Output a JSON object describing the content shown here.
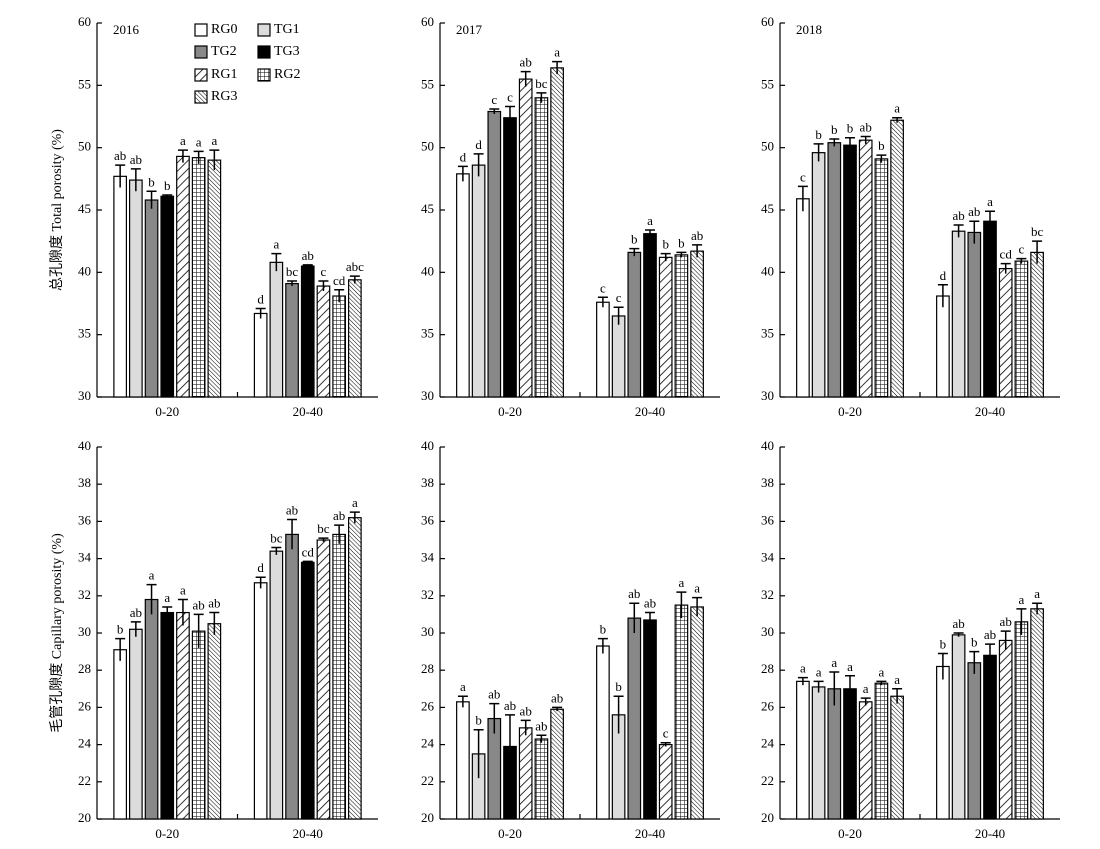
{
  "chart_data": [
    {
      "type": "bar",
      "title": "2016",
      "ylabel": "总孔隙度 Total porosity (%)",
      "categories": [
        "0-20",
        "20-40"
      ],
      "ylim": [
        30,
        60
      ],
      "yticks": [
        30,
        35,
        40,
        45,
        50,
        55,
        60
      ],
      "series": [
        {
          "name": "RG0",
          "pattern": "white",
          "values": [
            47.7,
            36.7
          ],
          "errors": [
            0.9,
            0.4
          ],
          "letters": [
            "ab",
            "d"
          ]
        },
        {
          "name": "TG1",
          "pattern": "lightgray",
          "values": [
            47.4,
            40.8
          ],
          "errors": [
            0.9,
            0.7
          ],
          "letters": [
            "ab",
            "a"
          ]
        },
        {
          "name": "TG2",
          "pattern": "gray",
          "values": [
            45.8,
            39.1
          ],
          "errors": [
            0.7,
            0.2
          ],
          "letters": [
            "b",
            "bc"
          ]
        },
        {
          "name": "TG3",
          "pattern": "black",
          "values": [
            46.1,
            40.5
          ],
          "errors": [
            0.1,
            0.1
          ],
          "letters": [
            "b",
            "ab"
          ]
        },
        {
          "name": "RG1",
          "pattern": "hatch",
          "values": [
            49.3,
            38.9
          ],
          "errors": [
            0.5,
            0.4
          ],
          "letters": [
            "a",
            "c"
          ]
        },
        {
          "name": "RG2",
          "pattern": "grid",
          "values": [
            49.2,
            38.1
          ],
          "errors": [
            0.5,
            0.5
          ],
          "letters": [
            "a",
            "cd"
          ]
        },
        {
          "name": "RG3",
          "pattern": "dense",
          "values": [
            49.0,
            39.4
          ],
          "errors": [
            0.8,
            0.3
          ],
          "letters": [
            "a",
            "abc"
          ]
        }
      ]
    },
    {
      "type": "bar",
      "title": "2017",
      "categories": [
        "0-20",
        "20-40"
      ],
      "ylim": [
        30,
        60
      ],
      "yticks": [
        30,
        35,
        40,
        45,
        50,
        55,
        60
      ],
      "series": [
        {
          "values": [
            47.9,
            37.6
          ],
          "errors": [
            0.6,
            0.4
          ],
          "letters": [
            "d",
            "c"
          ]
        },
        {
          "values": [
            48.6,
            36.5
          ],
          "errors": [
            0.9,
            0.7
          ],
          "letters": [
            "d",
            "c"
          ]
        },
        {
          "values": [
            52.9,
            41.6
          ],
          "errors": [
            0.2,
            0.3
          ],
          "letters": [
            "c",
            "b"
          ]
        },
        {
          "values": [
            52.4,
            43.1
          ],
          "errors": [
            0.9,
            0.3
          ],
          "letters": [
            "c",
            "a"
          ]
        },
        {
          "values": [
            55.5,
            41.2
          ],
          "errors": [
            0.6,
            0.3
          ],
          "letters": [
            "ab",
            "b"
          ]
        },
        {
          "values": [
            54.0,
            41.4
          ],
          "errors": [
            0.4,
            0.2
          ],
          "letters": [
            "bc",
            "b"
          ]
        },
        {
          "values": [
            56.4,
            41.7
          ],
          "errors": [
            0.5,
            0.5
          ],
          "letters": [
            "a",
            "ab"
          ]
        }
      ]
    },
    {
      "type": "bar",
      "title": "2018",
      "categories": [
        "0-20",
        "20-40"
      ],
      "ylim": [
        30,
        60
      ],
      "yticks": [
        30,
        35,
        40,
        45,
        50,
        55,
        60
      ],
      "series": [
        {
          "values": [
            45.9,
            38.1
          ],
          "errors": [
            1.0,
            0.9
          ],
          "letters": [
            "c",
            "d"
          ]
        },
        {
          "values": [
            49.6,
            43.3
          ],
          "errors": [
            0.7,
            0.5
          ],
          "letters": [
            "b",
            "ab"
          ]
        },
        {
          "values": [
            50.4,
            43.2
          ],
          "errors": [
            0.3,
            0.9
          ],
          "letters": [
            "b",
            "ab"
          ]
        },
        {
          "values": [
            50.2,
            44.1
          ],
          "errors": [
            0.6,
            0.8
          ],
          "letters": [
            "b",
            "a"
          ]
        },
        {
          "values": [
            50.6,
            40.3
          ],
          "errors": [
            0.3,
            0.4
          ],
          "letters": [
            "ab",
            "cd"
          ]
        },
        {
          "values": [
            49.1,
            40.9
          ],
          "errors": [
            0.3,
            0.2
          ],
          "letters": [
            "b",
            "c"
          ]
        },
        {
          "values": [
            52.2,
            41.6
          ],
          "errors": [
            0.2,
            0.9
          ],
          "letters": [
            "a",
            "bc"
          ]
        }
      ]
    },
    {
      "type": "bar",
      "ylabel": "毛管孔隙度 Capillary porosity (%)",
      "categories": [
        "0-20",
        "20-40"
      ],
      "ylim": [
        20,
        40
      ],
      "yticks": [
        20,
        22,
        24,
        26,
        28,
        30,
        32,
        34,
        36,
        38,
        40
      ],
      "series": [
        {
          "values": [
            29.1,
            32.7
          ],
          "errors": [
            0.6,
            0.3
          ],
          "letters": [
            "b",
            "d"
          ]
        },
        {
          "values": [
            30.2,
            34.4
          ],
          "errors": [
            0.4,
            0.2
          ],
          "letters": [
            "ab",
            "bc"
          ]
        },
        {
          "values": [
            31.8,
            35.3
          ],
          "errors": [
            0.8,
            0.8
          ],
          "letters": [
            "a",
            "ab"
          ]
        },
        {
          "values": [
            31.1,
            33.8
          ],
          "errors": [
            0.3,
            0.05
          ],
          "letters": [
            "a",
            "cd"
          ]
        },
        {
          "values": [
            31.1,
            35.0
          ],
          "errors": [
            0.7,
            0.1
          ],
          "letters": [
            "a",
            "bc"
          ]
        },
        {
          "values": [
            30.1,
            35.3
          ],
          "errors": [
            0.9,
            0.5
          ],
          "letters": [
            "ab",
            "ab"
          ]
        },
        {
          "values": [
            30.5,
            36.2
          ],
          "errors": [
            0.6,
            0.3
          ],
          "letters": [
            "ab",
            "a"
          ]
        }
      ]
    },
    {
      "type": "bar",
      "categories": [
        "0-20",
        "20-40"
      ],
      "ylim": [
        20,
        40
      ],
      "yticks": [
        20,
        22,
        24,
        26,
        28,
        30,
        32,
        34,
        36,
        38,
        40
      ],
      "series": [
        {
          "values": [
            26.3,
            29.3
          ],
          "errors": [
            0.3,
            0.4
          ],
          "letters": [
            "a",
            "b"
          ]
        },
        {
          "values": [
            23.5,
            25.6
          ],
          "errors": [
            1.3,
            1.0
          ],
          "letters": [
            "b",
            "b"
          ]
        },
        {
          "values": [
            25.4,
            30.8
          ],
          "errors": [
            0.8,
            0.8
          ],
          "letters": [
            "ab",
            "ab"
          ]
        },
        {
          "values": [
            23.9,
            30.7
          ],
          "errors": [
            1.7,
            0.4
          ],
          "letters": [
            "ab",
            "ab"
          ]
        },
        {
          "values": [
            24.9,
            24.0
          ],
          "errors": [
            0.4,
            0.1
          ],
          "letters": [
            "ab",
            "c"
          ]
        },
        {
          "values": [
            24.3,
            31.5
          ],
          "errors": [
            0.2,
            0.7
          ],
          "letters": [
            "ab",
            "a"
          ]
        },
        {
          "values": [
            25.9,
            31.4
          ],
          "errors": [
            0.1,
            0.5
          ],
          "letters": [
            "ab",
            "a"
          ]
        }
      ]
    },
    {
      "type": "bar",
      "categories": [
        "0-20",
        "20-40"
      ],
      "ylim": [
        20,
        40
      ],
      "yticks": [
        20,
        22,
        24,
        26,
        28,
        30,
        32,
        34,
        36,
        38,
        40
      ],
      "series": [
        {
          "values": [
            27.4,
            28.2
          ],
          "errors": [
            0.2,
            0.7
          ],
          "letters": [
            "a",
            "b"
          ]
        },
        {
          "values": [
            27.1,
            29.9
          ],
          "errors": [
            0.3,
            0.1
          ],
          "letters": [
            "a",
            "ab"
          ]
        },
        {
          "values": [
            27.0,
            28.4
          ],
          "errors": [
            0.9,
            0.6
          ],
          "letters": [
            "a",
            "b"
          ]
        },
        {
          "values": [
            27.0,
            28.8
          ],
          "errors": [
            0.7,
            0.6
          ],
          "letters": [
            "a",
            "ab"
          ]
        },
        {
          "values": [
            26.3,
            29.6
          ],
          "errors": [
            0.2,
            0.5
          ],
          "letters": [
            "a",
            "ab"
          ]
        },
        {
          "values": [
            27.3,
            30.6
          ],
          "errors": [
            0.1,
            0.7
          ],
          "letters": [
            "a",
            "a"
          ]
        },
        {
          "values": [
            26.6,
            31.3
          ],
          "errors": [
            0.4,
            0.3
          ],
          "letters": [
            "a",
            "a"
          ]
        }
      ]
    }
  ]
}
